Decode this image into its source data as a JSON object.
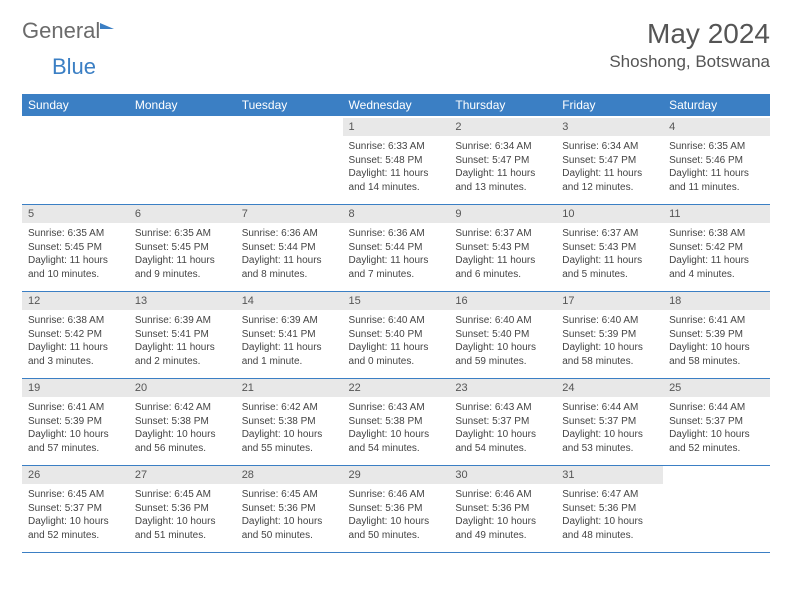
{
  "logo": {
    "text1": "General",
    "text2": "Blue"
  },
  "header": {
    "month": "May 2024",
    "location": "Shoshong, Botswana"
  },
  "colors": {
    "brand": "#3b7fc4",
    "daynum_bg": "#e8e8e8",
    "text": "#555555"
  },
  "weekdays": [
    "Sunday",
    "Monday",
    "Tuesday",
    "Wednesday",
    "Thursday",
    "Friday",
    "Saturday"
  ],
  "weeks": [
    {
      "nums": [
        "",
        "",
        "",
        "1",
        "2",
        "3",
        "4"
      ],
      "cells": [
        "",
        "",
        "",
        "Sunrise: 6:33 AM\nSunset: 5:48 PM\nDaylight: 11 hours and 14 minutes.",
        "Sunrise: 6:34 AM\nSunset: 5:47 PM\nDaylight: 11 hours and 13 minutes.",
        "Sunrise: 6:34 AM\nSunset: 5:47 PM\nDaylight: 11 hours and 12 minutes.",
        "Sunrise: 6:35 AM\nSunset: 5:46 PM\nDaylight: 11 hours and 11 minutes."
      ]
    },
    {
      "nums": [
        "5",
        "6",
        "7",
        "8",
        "9",
        "10",
        "11"
      ],
      "cells": [
        "Sunrise: 6:35 AM\nSunset: 5:45 PM\nDaylight: 11 hours and 10 minutes.",
        "Sunrise: 6:35 AM\nSunset: 5:45 PM\nDaylight: 11 hours and 9 minutes.",
        "Sunrise: 6:36 AM\nSunset: 5:44 PM\nDaylight: 11 hours and 8 minutes.",
        "Sunrise: 6:36 AM\nSunset: 5:44 PM\nDaylight: 11 hours and 7 minutes.",
        "Sunrise: 6:37 AM\nSunset: 5:43 PM\nDaylight: 11 hours and 6 minutes.",
        "Sunrise: 6:37 AM\nSunset: 5:43 PM\nDaylight: 11 hours and 5 minutes.",
        "Sunrise: 6:38 AM\nSunset: 5:42 PM\nDaylight: 11 hours and 4 minutes."
      ]
    },
    {
      "nums": [
        "12",
        "13",
        "14",
        "15",
        "16",
        "17",
        "18"
      ],
      "cells": [
        "Sunrise: 6:38 AM\nSunset: 5:42 PM\nDaylight: 11 hours and 3 minutes.",
        "Sunrise: 6:39 AM\nSunset: 5:41 PM\nDaylight: 11 hours and 2 minutes.",
        "Sunrise: 6:39 AM\nSunset: 5:41 PM\nDaylight: 11 hours and 1 minute.",
        "Sunrise: 6:40 AM\nSunset: 5:40 PM\nDaylight: 11 hours and 0 minutes.",
        "Sunrise: 6:40 AM\nSunset: 5:40 PM\nDaylight: 10 hours and 59 minutes.",
        "Sunrise: 6:40 AM\nSunset: 5:39 PM\nDaylight: 10 hours and 58 minutes.",
        "Sunrise: 6:41 AM\nSunset: 5:39 PM\nDaylight: 10 hours and 58 minutes."
      ]
    },
    {
      "nums": [
        "19",
        "20",
        "21",
        "22",
        "23",
        "24",
        "25"
      ],
      "cells": [
        "Sunrise: 6:41 AM\nSunset: 5:39 PM\nDaylight: 10 hours and 57 minutes.",
        "Sunrise: 6:42 AM\nSunset: 5:38 PM\nDaylight: 10 hours and 56 minutes.",
        "Sunrise: 6:42 AM\nSunset: 5:38 PM\nDaylight: 10 hours and 55 minutes.",
        "Sunrise: 6:43 AM\nSunset: 5:38 PM\nDaylight: 10 hours and 54 minutes.",
        "Sunrise: 6:43 AM\nSunset: 5:37 PM\nDaylight: 10 hours and 54 minutes.",
        "Sunrise: 6:44 AM\nSunset: 5:37 PM\nDaylight: 10 hours and 53 minutes.",
        "Sunrise: 6:44 AM\nSunset: 5:37 PM\nDaylight: 10 hours and 52 minutes."
      ]
    },
    {
      "nums": [
        "26",
        "27",
        "28",
        "29",
        "30",
        "31",
        ""
      ],
      "cells": [
        "Sunrise: 6:45 AM\nSunset: 5:37 PM\nDaylight: 10 hours and 52 minutes.",
        "Sunrise: 6:45 AM\nSunset: 5:36 PM\nDaylight: 10 hours and 51 minutes.",
        "Sunrise: 6:45 AM\nSunset: 5:36 PM\nDaylight: 10 hours and 50 minutes.",
        "Sunrise: 6:46 AM\nSunset: 5:36 PM\nDaylight: 10 hours and 50 minutes.",
        "Sunrise: 6:46 AM\nSunset: 5:36 PM\nDaylight: 10 hours and 49 minutes.",
        "Sunrise: 6:47 AM\nSunset: 5:36 PM\nDaylight: 10 hours and 48 minutes.",
        ""
      ]
    }
  ]
}
